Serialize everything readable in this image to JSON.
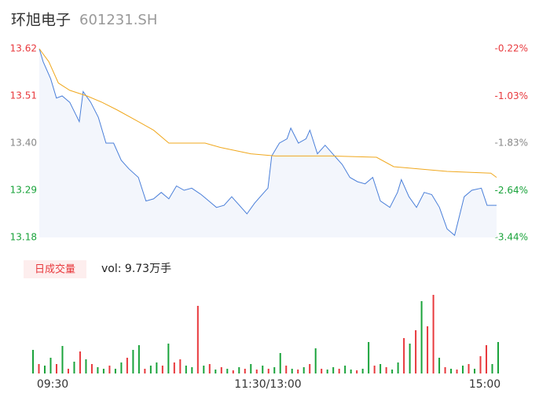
{
  "chart_data": {
    "type": "intraday",
    "title": "环旭电子",
    "subtitle": "601231.SH",
    "ylim": [
      13.18,
      13.62
    ],
    "yticks": [
      13.18,
      13.29,
      {
        "value": 13.4,
        "label": "13.40"
      },
      13.51,
      13.62
    ],
    "ytick_colors": [
      "#1aa33b",
      "#1aa33b",
      "#888888",
      "#e8393d",
      "#e8393d"
    ],
    "y2lim": [
      -3.44,
      -0.22
    ],
    "y2ticks": [
      {
        "value": -3.44,
        "label": "-3.44%"
      },
      {
        "value": -2.64,
        "label": "-2.64%"
      },
      {
        "value": -1.83,
        "label": "-1.83%"
      },
      {
        "value": -1.03,
        "label": "-1.03%"
      },
      {
        "value": -0.22,
        "label": "-0.22%"
      }
    ],
    "xlim": [
      0,
      240
    ],
    "xticks": [
      {
        "value": 0,
        "label": "09:30"
      },
      {
        "value": 120,
        "label": "11:30/13:00"
      },
      {
        "value": 240,
        "label": "15:00"
      }
    ],
    "series": [
      {
        "color": "#4a7fd9",
        "x": [
          0,
          2,
          6,
          9,
          12,
          16,
          21,
          23,
          27,
          31,
          35,
          39,
          43,
          47,
          52,
          56,
          60,
          64,
          68,
          72,
          76,
          80,
          85,
          89,
          93,
          97,
          101,
          105,
          109,
          113,
          118,
          120,
          122,
          126,
          130,
          132,
          136,
          140,
          142,
          146,
          150,
          155,
          159,
          163,
          167,
          171,
          175,
          179,
          184,
          188,
          190,
          194,
          198,
          202,
          206,
          210,
          214,
          218,
          223,
          227,
          232,
          235,
          240
        ],
        "values": [
          13.62,
          13.59,
          13.55,
          13.505,
          13.51,
          13.495,
          13.45,
          13.52,
          13.495,
          13.46,
          13.4,
          13.4,
          13.36,
          13.34,
          13.32,
          13.265,
          13.27,
          13.285,
          13.27,
          13.3,
          13.29,
          13.295,
          13.28,
          13.265,
          13.25,
          13.255,
          13.275,
          13.255,
          13.235,
          13.26,
          13.285,
          13.295,
          13.37,
          13.4,
          13.41,
          13.435,
          13.4,
          13.41,
          13.43,
          13.375,
          13.395,
          13.37,
          13.35,
          13.32,
          13.31,
          13.305,
          13.32,
          13.265,
          13.25,
          13.285,
          13.315,
          13.275,
          13.25,
          13.285,
          13.28,
          13.25,
          13.2,
          13.185,
          13.275,
          13.29,
          13.295,
          13.255,
          13.255
        ]
      },
      {
        "color": "#f0a81e",
        "x": [
          0,
          5,
          10,
          16,
          25,
          33,
          41,
          52,
          60,
          68,
          87,
          95,
          111,
          124,
          153,
          177,
          186,
          214,
          237,
          240
        ],
        "values": [
          13.62,
          13.59,
          13.54,
          13.523,
          13.51,
          13.495,
          13.477,
          13.45,
          13.43,
          13.4,
          13.4,
          13.39,
          13.375,
          13.37,
          13.37,
          13.367,
          13.345,
          13.334,
          13.33,
          13.32
        ]
      }
    ],
    "volume": {
      "label": "日成交量",
      "summary": "vol: 9.73万手",
      "ylim": [
        0,
        100
      ],
      "values": [
        30,
        12,
        10,
        20,
        12,
        35,
        6,
        15,
        28,
        18,
        12,
        8,
        6,
        10,
        6,
        14,
        20,
        30,
        36,
        6,
        10,
        14,
        10,
        38,
        14,
        18,
        10,
        8,
        86,
        10,
        12,
        5,
        8,
        6,
        4,
        8,
        6,
        12,
        5,
        10,
        6,
        8,
        26,
        10,
        6,
        5,
        8,
        12,
        32,
        6,
        5,
        8,
        6,
        10,
        5,
        4,
        6,
        40,
        10,
        12,
        8,
        5,
        14,
        45,
        38,
        55,
        92,
        60,
        100,
        20,
        8,
        6,
        5,
        10,
        12,
        6,
        22,
        36,
        12,
        40
      ],
      "colors": [
        "#1aa33b",
        "#e8393d",
        "#1aa33b",
        "#1aa33b",
        "#e8393d",
        "#1aa33b",
        "#e8393d",
        "#1aa33b",
        "#e8393d",
        "#1aa33b",
        "#e8393d",
        "#1aa33b",
        "#1aa33b",
        "#e8393d",
        "#1aa33b",
        "#1aa33b",
        "#e8393d",
        "#1aa33b",
        "#1aa33b",
        "#e8393d",
        "#1aa33b",
        "#1aa33b",
        "#e8393d",
        "#1aa33b",
        "#e8393d",
        "#e8393d",
        "#1aa33b",
        "#1aa33b",
        "#e8393d",
        "#1aa33b",
        "#e8393d",
        "#1aa33b",
        "#e8393d",
        "#1aa33b",
        "#e8393d",
        "#1aa33b",
        "#e8393d",
        "#1aa33b",
        "#e8393d",
        "#1aa33b",
        "#e8393d",
        "#1aa33b",
        "#1aa33b",
        "#e8393d",
        "#1aa33b",
        "#e8393d",
        "#1aa33b",
        "#e8393d",
        "#1aa33b",
        "#e8393d",
        "#1aa33b",
        "#1aa33b",
        "#e8393d",
        "#1aa33b",
        "#1aa33b",
        "#e8393d",
        "#1aa33b",
        "#1aa33b",
        "#e8393d",
        "#1aa33b",
        "#e8393d",
        "#1aa33b",
        "#1aa33b",
        "#e8393d",
        "#1aa33b",
        "#e8393d",
        "#1aa33b",
        "#e8393d",
        "#e8393d",
        "#1aa33b",
        "#e8393d",
        "#1aa33b",
        "#e8393d",
        "#1aa33b",
        "#e8393d",
        "#1aa33b",
        "#e8393d",
        "#e8393d",
        "#1aa33b",
        "#1aa33b"
      ]
    }
  }
}
